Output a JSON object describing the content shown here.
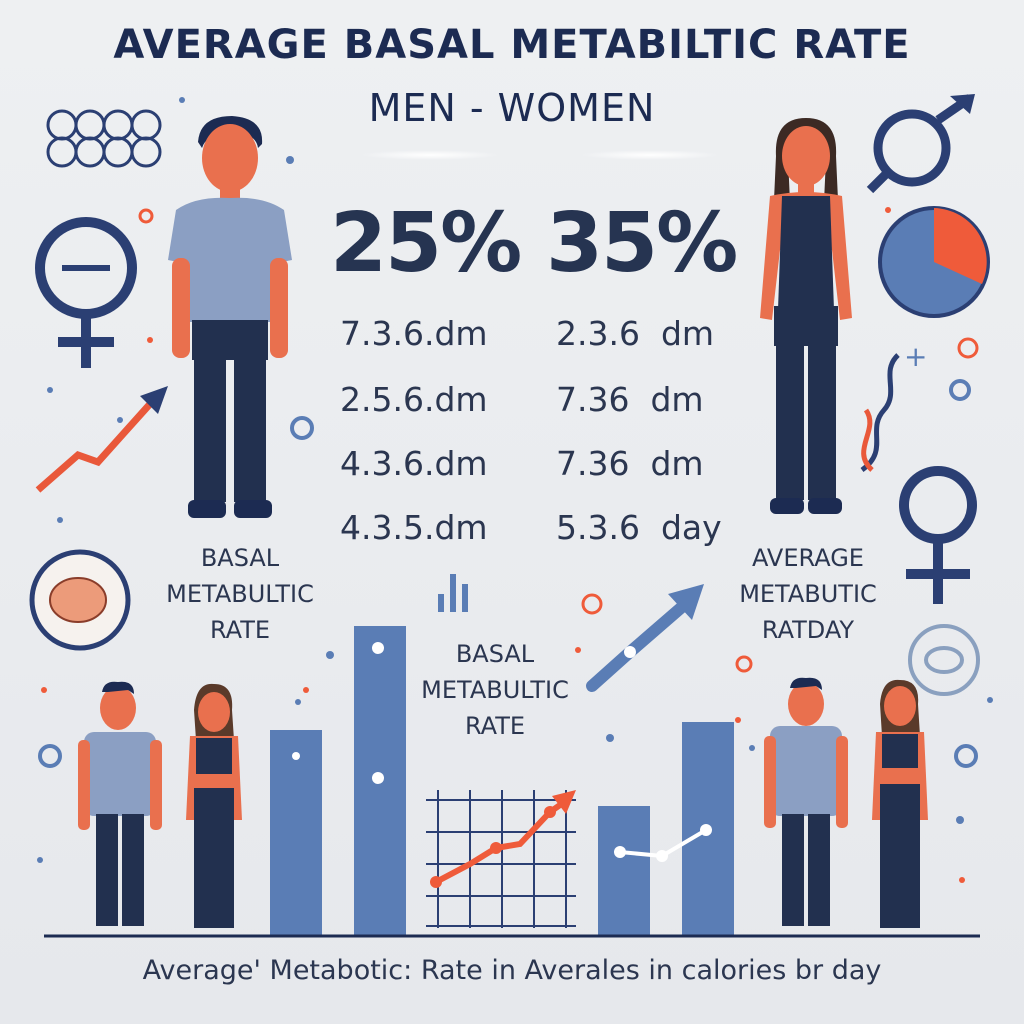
{
  "header": {
    "title": "AVERAGE BASAL METABILTIC RATE",
    "subtitle": "MEN  - WOMEN"
  },
  "stats": {
    "men_percent": "25%",
    "women_percent": "35%",
    "men_values": [
      "7.3.6.dm",
      "2.5.6.dm",
      "4.3.6.dm",
      "4.3.5.dm"
    ],
    "women_values": [
      "2.3.6  dm",
      "7.36  dm",
      "7.36  dm",
      "5.3.6  day"
    ]
  },
  "labels": {
    "left": [
      "BASAL",
      "METABULTIC",
      "RATE"
    ],
    "center": [
      "BASAL",
      "METABULTIC",
      "RATE"
    ],
    "right": [
      "AVERAGE",
      "METABUTIC",
      "RATDAY"
    ]
  },
  "footer": {
    "caption": "Average' Metabotic: Rate in Averales in calories br day"
  },
  "colors": {
    "navy": "#1c2b52",
    "blue": "#5a7db5",
    "orange": "#ef5b3a",
    "skin": "#e9704e",
    "shirt": "#8b9fc3",
    "pants": "#22304f"
  }
}
